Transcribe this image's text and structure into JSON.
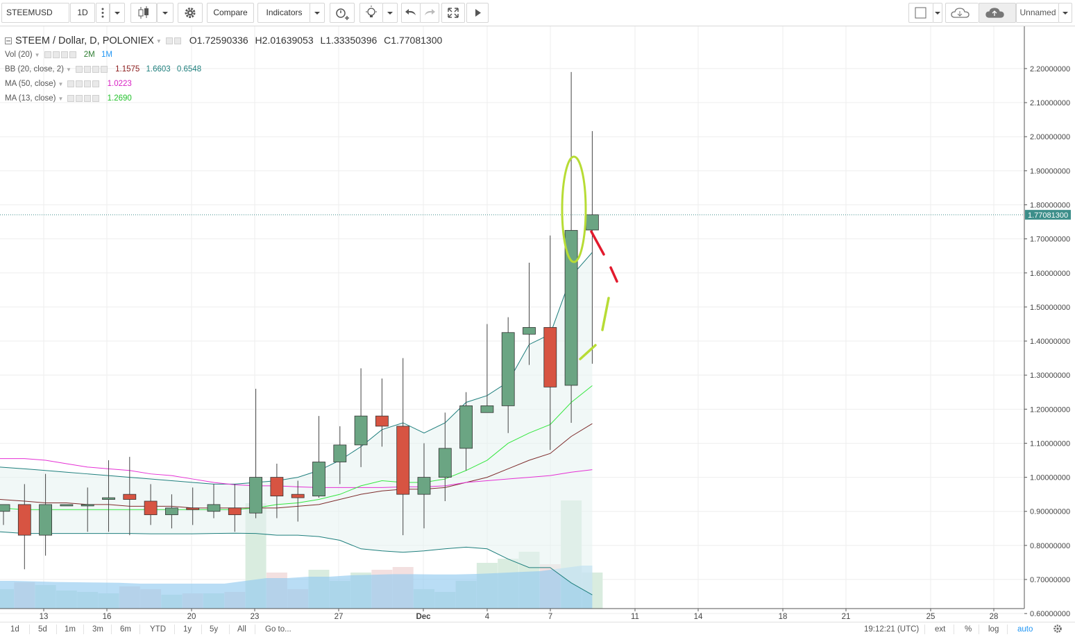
{
  "toolbar": {
    "symbol": "STEEMUSD",
    "interval": "1D",
    "compare_label": "Compare",
    "indicators_label": "Indicators",
    "layout_name": "Unnamed"
  },
  "legend": {
    "title": "STEEM / Dollar, D, POLONIEX",
    "o_label": "O",
    "o_value": "1.72590336",
    "h_label": "H",
    "h_value": "2.01639053",
    "l_label": "L",
    "l_value": "1.33350396",
    "c_label": "C",
    "c_value": "1.77081300",
    "vol_name": "Vol (20)",
    "vol_v1": "2M",
    "vol_v2": "1M",
    "bb_name": "BB (20, close, 2)",
    "bb_v1": "1.1575",
    "bb_v2": "1.6603",
    "bb_v3": "0.6548",
    "ma50_name": "MA (50, close)",
    "ma50_value": "1.0223",
    "ma13_name": "MA (13, close)",
    "ma13_value": "1.2690"
  },
  "bottom": {
    "ranges": [
      "1d",
      "5d",
      "1m",
      "3m",
      "6m",
      "YTD",
      "1y",
      "5y",
      "All"
    ],
    "goto_label": "Go to...",
    "time": "19:12:21 (UTC)",
    "ext": "ext",
    "pct": "%",
    "log": "log",
    "auto": "auto"
  },
  "colors": {
    "up": "#6ba583",
    "down": "#d75442",
    "bb_band": "#1d7e7c",
    "bb_fill": "#e5f2f1",
    "ma50": "#e52fd4",
    "ma13": "#33e63e",
    "bb_basis": "#7d2b2b",
    "vol_avg": "#93cbef",
    "ellipse": "#b7dc35",
    "dash_red": "#e21a2d",
    "last_price": "#3c8e8a",
    "vol_up": "#d7ebdd",
    "vol_down": "#f2dede"
  },
  "chart_data": {
    "type": "candlestick",
    "x_ticks": [
      "13",
      "16",
      "20",
      "23",
      "27",
      "Dec",
      "4",
      "7",
      "11",
      "14",
      "18",
      "21",
      "25",
      "28"
    ],
    "y_ticks": [
      "0.60000000",
      "0.70000000",
      "0.80000000",
      "0.90000000",
      "1.00000000",
      "1.10000000",
      "1.20000000",
      "1.30000000",
      "1.40000000",
      "1.50000000",
      "1.60000000",
      "1.70000000",
      "1.80000000",
      "1.90000000",
      "2.00000000",
      "2.10000000",
      "2.20000000"
    ],
    "last_price_label": "1.77081300",
    "candles": [
      {
        "o": 0.9,
        "h": 0.92,
        "l": 0.86,
        "c": 0.92
      },
      {
        "o": 0.92,
        "h": 0.98,
        "l": 0.73,
        "c": 0.83
      },
      {
        "o": 0.83,
        "h": 1.01,
        "l": 0.77,
        "c": 0.92
      },
      {
        "o": 0.92,
        "h": 0.92,
        "l": 0.92,
        "c": 0.92
      },
      {
        "o": 0.92,
        "h": 0.97,
        "l": 0.84,
        "c": 0.92
      },
      {
        "o": 0.935,
        "h": 1.05,
        "l": 0.84,
        "c": 0.94
      },
      {
        "o": 0.95,
        "h": 1.06,
        "l": 0.83,
        "c": 0.935
      },
      {
        "o": 0.93,
        "h": 0.98,
        "l": 0.86,
        "c": 0.89
      },
      {
        "o": 0.89,
        "h": 0.95,
        "l": 0.85,
        "c": 0.91
      },
      {
        "o": 0.91,
        "h": 0.97,
        "l": 0.86,
        "c": 0.905
      },
      {
        "o": 0.9,
        "h": 0.98,
        "l": 0.88,
        "c": 0.92
      },
      {
        "o": 0.91,
        "h": 0.98,
        "l": 0.84,
        "c": 0.89
      },
      {
        "o": 0.895,
        "h": 1.26,
        "l": 0.88,
        "c": 1.0
      },
      {
        "o": 1.0,
        "h": 1.04,
        "l": 0.88,
        "c": 0.945
      },
      {
        "o": 0.95,
        "h": 0.99,
        "l": 0.87,
        "c": 0.94
      },
      {
        "o": 0.945,
        "h": 1.18,
        "l": 0.94,
        "c": 1.045
      },
      {
        "o": 1.045,
        "h": 1.15,
        "l": 0.98,
        "c": 1.095
      },
      {
        "o": 1.095,
        "h": 1.32,
        "l": 1.03,
        "c": 1.18
      },
      {
        "o": 1.18,
        "h": 1.29,
        "l": 1.09,
        "c": 1.15
      },
      {
        "o": 1.15,
        "h": 1.35,
        "l": 0.83,
        "c": 0.95
      },
      {
        "o": 0.95,
        "h": 1.1,
        "l": 0.85,
        "c": 1.0
      },
      {
        "o": 1.0,
        "h": 1.19,
        "l": 0.93,
        "c": 1.085
      },
      {
        "o": 1.085,
        "h": 1.25,
        "l": 1.02,
        "c": 1.21
      },
      {
        "o": 1.19,
        "h": 1.45,
        "l": 1.19,
        "c": 1.21
      },
      {
        "o": 1.21,
        "h": 1.47,
        "l": 1.13,
        "c": 1.425
      },
      {
        "o": 1.42,
        "h": 1.63,
        "l": 1.33,
        "c": 1.44
      },
      {
        "o": 1.44,
        "h": 1.71,
        "l": 1.08,
        "c": 1.265
      },
      {
        "o": 1.27,
        "h": 2.19,
        "l": 1.16,
        "c": 1.725
      },
      {
        "o": 1.7259,
        "h": 2.0164,
        "l": 1.3335,
        "c": 1.7708
      }
    ],
    "volume": [
      0.7,
      0.95,
      0.85,
      0.65,
      0.6,
      0.55,
      0.8,
      0.7,
      0.5,
      0.55,
      0.55,
      0.6,
      3.8,
      1.3,
      0.7,
      1.4,
      1.0,
      1.3,
      1.4,
      1.5,
      0.7,
      0.6,
      1.0,
      1.65,
      1.8,
      2.05,
      1.6,
      3.9,
      1.3
    ],
    "bb_upper": [
      1.03,
      1.025,
      1.02,
      1.015,
      1.01,
      1.005,
      1.0,
      0.995,
      0.99,
      0.985,
      0.98,
      0.98,
      0.985,
      0.99,
      1.0,
      1.02,
      1.05,
      1.09,
      1.14,
      1.16,
      1.13,
      1.16,
      1.22,
      1.24,
      1.28,
      1.39,
      1.42,
      1.59,
      1.6603
    ],
    "bb_lower": [
      0.84,
      0.835,
      0.835,
      0.835,
      0.835,
      0.835,
      0.835,
      0.834,
      0.834,
      0.834,
      0.835,
      0.836,
      0.835,
      0.83,
      0.83,
      0.826,
      0.815,
      0.79,
      0.784,
      0.78,
      0.784,
      0.79,
      0.795,
      0.79,
      0.76,
      0.735,
      0.735,
      0.69,
      0.6548
    ],
    "bb_basis": [
      0.935,
      0.93,
      0.925,
      0.925,
      0.92,
      0.92,
      0.915,
      0.915,
      0.915,
      0.91,
      0.91,
      0.91,
      0.91,
      0.91,
      0.915,
      0.92,
      0.935,
      0.95,
      0.96,
      0.965,
      0.965,
      0.97,
      0.985,
      1.0,
      1.025,
      1.05,
      1.07,
      1.12,
      1.1575
    ],
    "ma50": [
      1.055,
      1.055,
      1.05,
      1.04,
      1.03,
      1.025,
      1.02,
      1.01,
      1.005,
      0.995,
      0.985,
      0.978,
      0.975,
      0.975,
      0.972,
      0.97,
      0.97,
      0.97,
      0.97,
      0.972,
      0.972,
      0.975,
      0.985,
      0.99,
      0.995,
      1.0,
      1.005,
      1.015,
      1.0223
    ],
    "ma13": [
      0.91,
      0.905,
      0.905,
      0.905,
      0.905,
      0.905,
      0.905,
      0.905,
      0.905,
      0.905,
      0.905,
      0.905,
      0.91,
      0.92,
      0.925,
      0.935,
      0.95,
      0.975,
      0.99,
      0.985,
      0.985,
      0.995,
      1.02,
      1.05,
      1.1,
      1.13,
      1.155,
      1.22,
      1.269
    ],
    "vol_avg": [
      1.0,
      1.0,
      0.98,
      0.96,
      0.95,
      0.94,
      0.93,
      0.9,
      0.9,
      0.9,
      0.9,
      0.9,
      1.0,
      1.1,
      1.1,
      1.15,
      1.15,
      1.2,
      1.22,
      1.24,
      1.24,
      1.23,
      1.23,
      1.25,
      1.28,
      1.32,
      1.35,
      1.45,
      1.55
    ]
  }
}
